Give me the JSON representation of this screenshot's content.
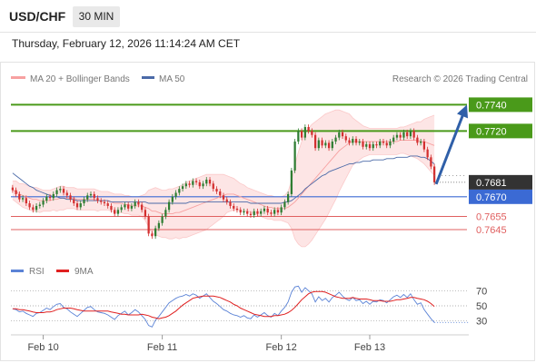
{
  "header": {
    "pair": "USD/CHF",
    "timeframe": "30 MIN",
    "datetime": "Thursday, February 12, 2026 11:14:24 AM CET"
  },
  "legend": {
    "bb": "MA 20 + Bollinger Bands",
    "ma50": "MA 50",
    "credit": "Research © 2026 Trading Central",
    "rsi": "RSI",
    "rsi_ma": "9MA"
  },
  "colors": {
    "up": "#2e7d32",
    "down": "#d32f2f",
    "bb_fill": "#fde5e5",
    "bb_line": "#f7a1a1",
    "ma50": "#4b6aa8",
    "resistance": "#4a9a1a",
    "pivot": "#3b6ad4",
    "support": "#e06060",
    "arrow": "#2f5fa8",
    "current": "#333333",
    "rsi": "#5b83d6",
    "rsi_ma": "#e02020"
  },
  "chart_data": [
    {
      "type": "candlestick",
      "title": "USD/CHF",
      "timeframe": "30 MIN",
      "x_ticks": [
        "Feb 10",
        "Feb 11",
        "Feb 12",
        "Feb 13"
      ],
      "ylim": [
        0.7625,
        0.7752
      ],
      "current_price": "0.7681",
      "levels": [
        {
          "value": 0.774,
          "label": "0.7740",
          "kind": "resistance"
        },
        {
          "value": 0.772,
          "label": "0.7720",
          "kind": "resistance"
        },
        {
          "value": 0.767,
          "label": "0.7670",
          "kind": "pivot"
        },
        {
          "value": 0.7655,
          "label": "0.7655",
          "kind": "support"
        },
        {
          "value": 0.7645,
          "label": "0.7645",
          "kind": "support"
        }
      ],
      "projection": {
        "from": 0.7681,
        "to": 0.774
      },
      "series": [
        {
          "name": "MA 20 + Bollinger Bands"
        },
        {
          "name": "MA 50"
        }
      ],
      "close": [
        0.7675,
        0.7672,
        0.7668,
        0.7669,
        0.7665,
        0.7662,
        0.766,
        0.7663,
        0.7664,
        0.7667,
        0.767,
        0.7669,
        0.7672,
        0.7675,
        0.7676,
        0.7673,
        0.7671,
        0.7668,
        0.7665,
        0.7662,
        0.7665,
        0.7668,
        0.7671,
        0.7672,
        0.7669,
        0.7667,
        0.7666,
        0.7665,
        0.7663,
        0.766,
        0.7657,
        0.766,
        0.7662,
        0.7664,
        0.7661,
        0.7663,
        0.7666,
        0.7664,
        0.766,
        0.7655,
        0.7642,
        0.764,
        0.7646,
        0.765,
        0.7655,
        0.766,
        0.7666,
        0.767,
        0.7673,
        0.7676,
        0.7678,
        0.768,
        0.7679,
        0.7682,
        0.7681,
        0.7678,
        0.768,
        0.7683,
        0.768,
        0.7676,
        0.7674,
        0.7671,
        0.7668,
        0.7666,
        0.7663,
        0.7661,
        0.766,
        0.7658,
        0.7659,
        0.7657,
        0.7656,
        0.7659,
        0.7657,
        0.7659,
        0.7661,
        0.7658,
        0.7657,
        0.766,
        0.7658,
        0.7662,
        0.7666,
        0.7672,
        0.769,
        0.7712,
        0.772,
        0.7715,
        0.7723,
        0.772,
        0.7717,
        0.7707,
        0.7713,
        0.7709,
        0.7711,
        0.7707,
        0.7712,
        0.7715,
        0.7719,
        0.7716,
        0.7713,
        0.7711,
        0.7714,
        0.7711,
        0.7712,
        0.7708,
        0.771,
        0.7707,
        0.771,
        0.7709,
        0.7712,
        0.7711,
        0.7709,
        0.7712,
        0.7715,
        0.7717,
        0.7715,
        0.7719,
        0.7716,
        0.772,
        0.7715,
        0.7711,
        0.7712,
        0.7706,
        0.77,
        0.7693,
        0.7681
      ],
      "ma20": [
        0.7675,
        0.7674,
        0.7672,
        0.7671,
        0.767,
        0.7669,
        0.7668,
        0.7668,
        0.7667,
        0.7667,
        0.7667,
        0.7667,
        0.7668,
        0.7668,
        0.7669,
        0.7669,
        0.7669,
        0.7669,
        0.7669,
        0.7668,
        0.7668,
        0.7668,
        0.7668,
        0.7668,
        0.7668,
        0.7667,
        0.7667,
        0.7667,
        0.7667,
        0.7666,
        0.7665,
        0.7665,
        0.7665,
        0.7664,
        0.7664,
        0.7663,
        0.7663,
        0.7663,
        0.7663,
        0.7662,
        0.7661,
        0.7659,
        0.7659,
        0.7658,
        0.7657,
        0.7657,
        0.7657,
        0.7657,
        0.7658,
        0.7658,
        0.7659,
        0.766,
        0.7661,
        0.7662,
        0.7663,
        0.7664,
        0.7665,
        0.7666,
        0.7667,
        0.7668,
        0.7669,
        0.767,
        0.7671,
        0.7672,
        0.7672,
        0.7672,
        0.7671,
        0.767,
        0.7669,
        0.7668,
        0.7667,
        0.7666,
        0.7665,
        0.7664,
        0.7663,
        0.7662,
        0.7662,
        0.7661,
        0.7661,
        0.7661,
        0.7661,
        0.7662,
        0.7664,
        0.7666,
        0.7669,
        0.7672,
        0.7675,
        0.7678,
        0.7681,
        0.7684,
        0.7687,
        0.769,
        0.7693,
        0.7696,
        0.7699,
        0.7702,
        0.7705,
        0.7707,
        0.7709,
        0.7711,
        0.7712,
        0.7712,
        0.7712,
        0.7712,
        0.7712,
        0.7712,
        0.7712,
        0.7712,
        0.7712,
        0.7712,
        0.7712,
        0.7712,
        0.7712,
        0.7712,
        0.7713,
        0.7713,
        0.7713,
        0.7713,
        0.7713,
        0.7713,
        0.7712,
        0.7712,
        0.7711,
        0.771,
        0.7709
      ],
      "bb_width": [
        0.0007,
        0.0008,
        0.0008,
        0.0009,
        0.0009,
        0.0009,
        0.0009,
        0.0009,
        0.0009,
        0.0008,
        0.0008,
        0.0008,
        0.0008,
        0.0009,
        0.0009,
        0.0009,
        0.0008,
        0.0008,
        0.0008,
        0.0008,
        0.0008,
        0.0008,
        0.0008,
        0.0008,
        0.0008,
        0.0008,
        0.0007,
        0.0007,
        0.0007,
        0.0007,
        0.0007,
        0.0007,
        0.0007,
        0.0007,
        0.0007,
        0.0007,
        0.0007,
        0.0007,
        0.0008,
        0.001,
        0.0014,
        0.0017,
        0.0018,
        0.0018,
        0.0018,
        0.0018,
        0.0019,
        0.0019,
        0.0019,
        0.002,
        0.002,
        0.0021,
        0.0021,
        0.0021,
        0.0021,
        0.0021,
        0.0021,
        0.0021,
        0.002,
        0.0019,
        0.0018,
        0.0017,
        0.0016,
        0.0014,
        0.0013,
        0.0012,
        0.0011,
        0.001,
        0.001,
        0.0009,
        0.0009,
        0.0009,
        0.0009,
        0.0009,
        0.0009,
        0.0009,
        0.0009,
        0.0009,
        0.0009,
        0.0009,
        0.001,
        0.0012,
        0.0018,
        0.0028,
        0.0035,
        0.004,
        0.0043,
        0.0044,
        0.0044,
        0.0043,
        0.0042,
        0.0041,
        0.004,
        0.0038,
        0.0036,
        0.0034,
        0.0031,
        0.0028,
        0.0025,
        0.0022,
        0.0018,
        0.0016,
        0.0014,
        0.0012,
        0.0011,
        0.001,
        0.001,
        0.001,
        0.001,
        0.001,
        0.001,
        0.001,
        0.001,
        0.001,
        0.001,
        0.001,
        0.0011,
        0.0012,
        0.0013,
        0.0014,
        0.0015,
        0.0017,
        0.0019,
        0.0021,
        0.0023
      ],
      "ma50": [
        0.7688,
        0.7686,
        0.7684,
        0.7682,
        0.768,
        0.7678,
        0.7677,
        0.7675,
        0.7674,
        0.7673,
        0.7672,
        0.7671,
        0.767,
        0.767,
        0.7669,
        0.7669,
        0.7668,
        0.7668,
        0.7668,
        0.7667,
        0.7667,
        0.7667,
        0.7667,
        0.7667,
        0.7667,
        0.7667,
        0.7667,
        0.7667,
        0.7667,
        0.7666,
        0.7666,
        0.7666,
        0.7666,
        0.7666,
        0.7666,
        0.7666,
        0.7666,
        0.7666,
        0.7666,
        0.7666,
        0.7665,
        0.7665,
        0.7665,
        0.7665,
        0.7665,
        0.7665,
        0.7665,
        0.7665,
        0.7665,
        0.7665,
        0.7665,
        0.7665,
        0.7666,
        0.7666,
        0.7666,
        0.7666,
        0.7666,
        0.7666,
        0.7666,
        0.7666,
        0.7666,
        0.7666,
        0.7666,
        0.7666,
        0.7666,
        0.7666,
        0.7666,
        0.7666,
        0.7666,
        0.7666,
        0.7665,
        0.7665,
        0.7665,
        0.7665,
        0.7665,
        0.7665,
        0.7665,
        0.7665,
        0.7665,
        0.7665,
        0.7666,
        0.7666,
        0.7667,
        0.7669,
        0.7671,
        0.7673,
        0.7676,
        0.7678,
        0.768,
        0.7682,
        0.7684,
        0.7686,
        0.7687,
        0.7689,
        0.769,
        0.7691,
        0.7692,
        0.7693,
        0.7694,
        0.7695,
        0.7695,
        0.7696,
        0.7696,
        0.7697,
        0.7697,
        0.7697,
        0.7698,
        0.7698,
        0.7698,
        0.7698,
        0.7699,
        0.7699,
        0.7699,
        0.77,
        0.77,
        0.77,
        0.77,
        0.7701,
        0.7701,
        0.7701,
        0.77,
        0.77,
        0.7699,
        0.7697,
        0.7695
      ]
    },
    {
      "type": "line",
      "title": "RSI",
      "ylim": [
        20,
        80
      ],
      "y_ticks": [
        "70",
        "50",
        "30"
      ],
      "series": [
        {
          "name": "RSI",
          "values": [
            46,
            45,
            42,
            43,
            40,
            38,
            36,
            40,
            41,
            44,
            47,
            45,
            49,
            52,
            53,
            48,
            46,
            42,
            39,
            36,
            40,
            44,
            48,
            49,
            45,
            42,
            41,
            40,
            38,
            35,
            32,
            37,
            40,
            43,
            38,
            41,
            45,
            42,
            37,
            32,
            24,
            22,
            31,
            36,
            42,
            48,
            54,
            57,
            60,
            62,
            63,
            65,
            63,
            66,
            64,
            60,
            63,
            66,
            61,
            56,
            53,
            49,
            45,
            43,
            40,
            38,
            37,
            35,
            37,
            34,
            33,
            38,
            35,
            38,
            41,
            37,
            35,
            40,
            37,
            43,
            48,
            55,
            68,
            75,
            76,
            68,
            74,
            70,
            66,
            55,
            62,
            57,
            60,
            55,
            61,
            64,
            68,
            63,
            59,
            57,
            61,
            57,
            58,
            53,
            56,
            52,
            56,
            55,
            58,
            57,
            54,
            58,
            62,
            64,
            61,
            65,
            61,
            66,
            58,
            52,
            54,
            45,
            39,
            33,
            28
          ]
        },
        {
          "name": "9MA",
          "values": [
            46,
            46,
            45,
            45,
            44,
            43,
            42,
            41,
            41,
            41,
            42,
            42,
            43,
            45,
            46,
            47,
            47,
            47,
            46,
            45,
            44,
            43,
            43,
            43,
            43,
            43,
            43,
            43,
            43,
            42,
            41,
            40,
            39,
            39,
            38,
            38,
            38,
            38,
            39,
            38,
            37,
            35,
            34,
            33,
            34,
            35,
            37,
            40,
            43,
            47,
            51,
            54,
            57,
            60,
            61,
            62,
            63,
            63,
            63,
            63,
            62,
            61,
            59,
            57,
            55,
            52,
            50,
            47,
            45,
            43,
            41,
            39,
            38,
            37,
            36,
            36,
            36,
            37,
            37,
            38,
            39,
            41,
            44,
            48,
            53,
            58,
            62,
            66,
            68,
            69,
            69,
            69,
            68,
            66,
            64,
            62,
            61,
            60,
            60,
            60,
            61,
            60,
            59,
            59,
            59,
            58,
            57,
            57,
            57,
            56,
            56,
            56,
            57,
            58,
            58,
            59,
            60,
            61,
            61,
            60,
            59,
            58,
            56,
            53,
            49
          ]
        }
      ]
    }
  ]
}
